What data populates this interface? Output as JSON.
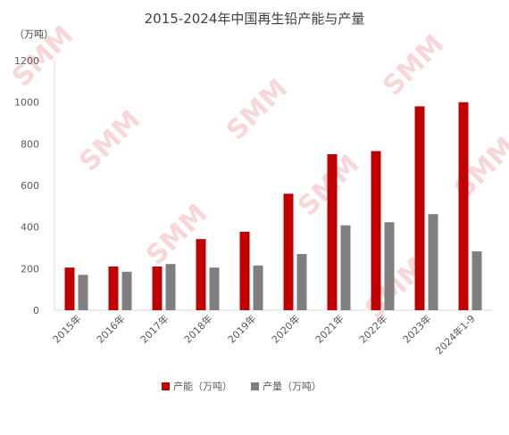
{
  "chart_data": {
    "type": "bar",
    "title": "2015-2024年中国再生铅产能与产量",
    "unit_label": "（万吨）",
    "categories": [
      "2015年",
      "2016年",
      "2017年",
      "2018年",
      "2019年",
      "2020年",
      "2021年",
      "2022年",
      "2023年",
      "2024年1-9"
    ],
    "series": [
      {
        "name": "产能（万吨）",
        "color": "#c00000",
        "values": [
          205,
          210,
          210,
          342,
          377,
          560,
          750,
          765,
          980,
          1000
        ]
      },
      {
        "name": "产量（万吨）",
        "color": "#7f7f7f",
        "values": [
          170,
          185,
          222,
          205,
          215,
          270,
          408,
          423,
          462,
          283
        ]
      }
    ],
    "y_ticks": [
      "0",
      "200",
      "400",
      "600",
      "800",
      "1000",
      "1200"
    ],
    "ylim": [
      0,
      1200
    ],
    "grid": false,
    "legend_position": "bottom",
    "watermark": "SMM"
  }
}
